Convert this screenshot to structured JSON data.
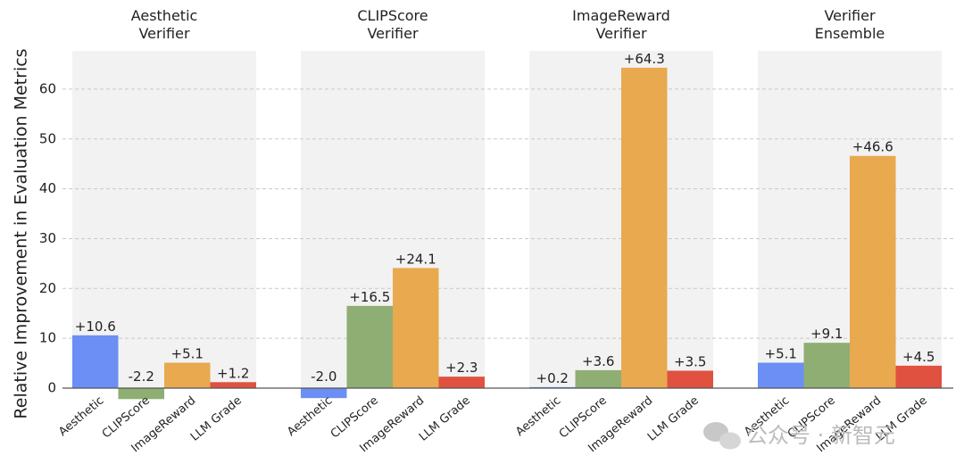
{
  "chart_data": {
    "type": "bar",
    "ylabel": "Relative Improvement in Evaluation Metrics",
    "ylim": [
      -2.5,
      68
    ],
    "yticks": [
      0,
      10,
      20,
      30,
      40,
      50,
      60
    ],
    "grid": "horizontal dashed",
    "categories": [
      "Aesthetic",
      "CLIPScore",
      "ImageReward",
      "LLM Grade"
    ],
    "colors": [
      "#6b8ff5",
      "#8fae73",
      "#e8a94f",
      "#e0513f"
    ],
    "panels": [
      {
        "title_lines": [
          "Aesthetic",
          "Verifier"
        ],
        "values": [
          10.6,
          -2.2,
          5.1,
          1.2
        ],
        "labels": [
          "+10.6",
          "-2.2",
          "+5.1",
          "+1.2"
        ]
      },
      {
        "title_lines": [
          "CLIPScore",
          "Verifier"
        ],
        "values": [
          -2.0,
          16.5,
          24.1,
          2.3
        ],
        "labels": [
          "-2.0",
          "+16.5",
          "+24.1",
          "+2.3"
        ]
      },
      {
        "title_lines": [
          "ImageReward",
          "Verifier"
        ],
        "values": [
          0.2,
          3.6,
          64.3,
          3.5
        ],
        "labels": [
          "+0.2",
          "+3.6",
          "+64.3",
          "+3.5"
        ]
      },
      {
        "title_lines": [
          "Verifier",
          "Ensemble"
        ],
        "values": [
          5.1,
          9.1,
          46.6,
          4.5
        ],
        "labels": [
          "+5.1",
          "+9.1",
          "+46.6",
          "+4.5"
        ]
      }
    ]
  },
  "watermark": {
    "text": "公众号 · 新智元",
    "icon": "wechat-icon"
  }
}
